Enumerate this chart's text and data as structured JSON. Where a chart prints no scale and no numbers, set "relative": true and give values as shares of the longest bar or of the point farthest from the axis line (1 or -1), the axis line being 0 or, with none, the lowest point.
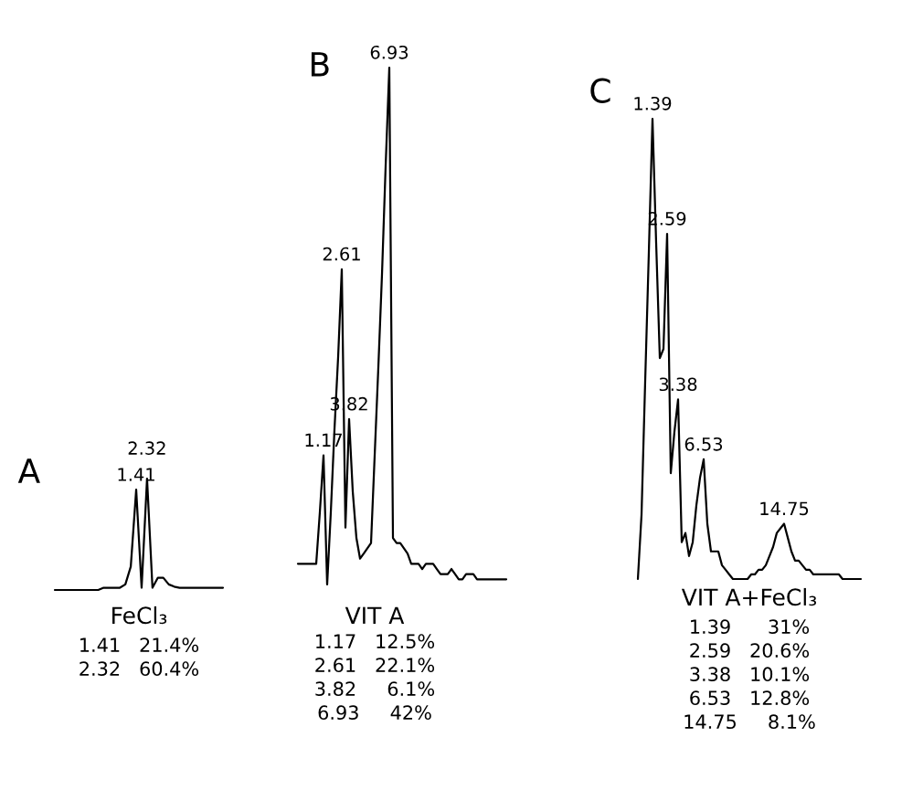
{
  "chart_data": [
    {
      "type": "line",
      "title": "A",
      "relative": true,
      "categories": [
        null,
        null,
        null,
        null,
        null,
        null,
        null,
        null,
        null,
        null,
        null,
        null,
        null,
        null,
        null,
        null,
        null,
        null,
        null,
        null,
        null,
        null,
        null,
        null,
        null,
        null,
        null,
        null,
        null,
        null,
        null,
        null
      ],
      "series": [
        {
          "color": "#000000",
          "values": [
            0,
            0,
            0,
            0,
            0,
            0,
            0,
            0,
            0,
            0.02,
            0.02,
            0.02,
            0.02,
            0.05,
            0.21,
            0.9,
            0.02,
            1,
            0.02,
            0.11,
            0.11,
            0.05,
            0.03,
            0.02,
            0.02,
            0.02,
            0.02,
            0.02,
            0.02,
            0.02,
            0.02,
            0.02
          ]
        }
      ],
      "annotations": [
        {
          "text": "1.41",
          "y": 0.9
        },
        {
          "text": "2.32",
          "y": 1
        },
        "FeCl₃",
        "1.41   21.4%",
        "2.32   60.4%"
      ]
    },
    {
      "type": "line",
      "title": "B",
      "relative": true,
      "categories": [
        null,
        null,
        null,
        null,
        null,
        null,
        null,
        null,
        null,
        null,
        null,
        null,
        null,
        null,
        null,
        null,
        null,
        null,
        null,
        null,
        null,
        null,
        null,
        null,
        null,
        null,
        null,
        null,
        null,
        null,
        null,
        null,
        null,
        null,
        null,
        null,
        null,
        null,
        null,
        null,
        null,
        null,
        null,
        null,
        null,
        null,
        null,
        null,
        null,
        null,
        null,
        null,
        null,
        null,
        null,
        null,
        null,
        null
      ],
      "series": [
        {
          "color": "#000000",
          "values": [
            0.04,
            0.04,
            0.04,
            0.04,
            0.04,
            0.04,
            0.14,
            0.25,
            0,
            0.14,
            0.3,
            0.44,
            0.61,
            0.11,
            0.32,
            0.18,
            0.09,
            0.05,
            0.06,
            0.07,
            0.08,
            0.25,
            0.42,
            0.6,
            0.81,
            1,
            0.09,
            0.08,
            0.08,
            0.07,
            0.06,
            0.04,
            0.04,
            0.04,
            0.03,
            0.04,
            0.04,
            0.04,
            0.03,
            0.02,
            0.02,
            0.02,
            0.03,
            0.02,
            0.01,
            0.01,
            0.02,
            0.02,
            0.02,
            0.01,
            0.01,
            0.01,
            0.01,
            0.01,
            0.01,
            0.01,
            0.01,
            0.01
          ]
        }
      ],
      "annotations": [
        {
          "text": "1.17",
          "y": 0.25
        },
        {
          "text": "2.61",
          "y": 0.61
        },
        {
          "text": "3.82",
          "y": 0.32
        },
        {
          "text": "6.93",
          "y": 1
        },
        "VIT A",
        "1.17   12.5%",
        "2.61   22.1%",
        "3.82     6.1%",
        "6.93     42%"
      ]
    },
    {
      "type": "line",
      "title": "C",
      "relative": true,
      "categories": [
        null,
        null,
        null,
        null,
        null,
        null,
        null,
        null,
        null,
        null,
        null,
        null,
        null,
        null,
        null,
        null,
        null,
        null,
        null,
        null,
        null,
        null,
        null,
        null,
        null,
        null,
        null,
        null,
        null,
        null,
        null,
        null,
        null,
        null,
        null,
        null,
        null,
        null,
        null,
        null,
        null,
        null,
        null,
        null,
        null,
        null,
        null,
        null,
        null,
        null,
        null,
        null,
        null,
        null,
        null,
        null,
        null,
        null,
        null,
        null,
        null,
        null
      ],
      "series": [
        {
          "color": "#000000",
          "values": [
            0,
            0.14,
            0.43,
            0.71,
            1,
            0.73,
            0.48,
            0.5,
            0.75,
            0.23,
            0.32,
            0.39,
            0.08,
            0.1,
            0.05,
            0.08,
            0.16,
            0.22,
            0.26,
            0.12,
            0.06,
            0.06,
            0.06,
            0.03,
            0.02,
            0.01,
            0,
            0,
            0,
            0,
            0,
            0.01,
            0.01,
            0.02,
            0.02,
            0.03,
            0.05,
            0.07,
            0.1,
            0.11,
            0.12,
            0.09,
            0.06,
            0.04,
            0.04,
            0.03,
            0.02,
            0.02,
            0.01,
            0.01,
            0.01,
            0.01,
            0.01,
            0.01,
            0.01,
            0.01,
            0,
            0,
            0,
            0,
            0,
            0
          ]
        }
      ],
      "annotations": [
        {
          "text": "1.39",
          "y": 1
        },
        {
          "text": "2.59",
          "y": 0.75
        },
        {
          "text": "3.38",
          "y": 0.39
        },
        {
          "text": "6.53",
          "y": 0.26
        },
        {
          "text": "14.75",
          "y": 0.12
        },
        "VIT A+FeCl₃",
        "1.39      31%",
        "2.59   20.6%",
        "3.38   10.1%",
        "6.53   12.8%",
        "14.75     8.1%"
      ]
    }
  ]
}
